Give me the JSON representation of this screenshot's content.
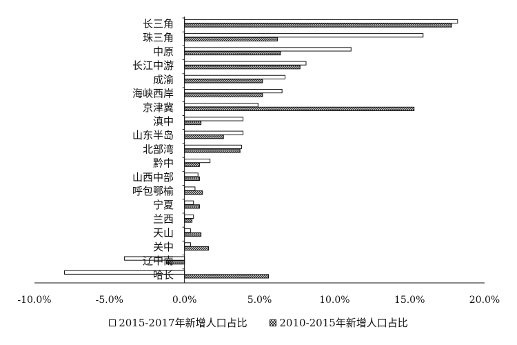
{
  "chart_data": {
    "type": "bar",
    "orientation": "horizontal",
    "categories": [
      "长三角",
      "珠三角",
      "中原",
      "长江中游",
      "成渝",
      "海峡西岸",
      "京津冀",
      "滇中",
      "山东半岛",
      "北部湾",
      "黔中",
      "山西中部",
      "呼包鄂榆",
      "宁夏",
      "兰西",
      "天山",
      "关中",
      "辽中南",
      "哈长"
    ],
    "series": [
      {
        "name": "2015-2017年新增人口占比",
        "pattern": "hollow",
        "values": [
          18.2,
          15.9,
          11.1,
          8.1,
          6.7,
          6.5,
          4.9,
          3.9,
          3.9,
          3.8,
          1.7,
          0.9,
          0.7,
          0.6,
          0.6,
          0.4,
          0.4,
          -4.0,
          -8.0
        ]
      },
      {
        "name": "2010-2015年新增人口占比",
        "pattern": "hatched",
        "values": [
          17.8,
          6.2,
          6.4,
          7.7,
          5.2,
          5.2,
          15.3,
          1.1,
          2.6,
          3.7,
          1.0,
          1.0,
          1.2,
          1.0,
          0.5,
          1.1,
          1.6,
          -1.2,
          5.6
        ]
      }
    ],
    "xlim": [
      -10,
      20
    ],
    "xticks": [
      -10,
      -5,
      0,
      5,
      10,
      15,
      20
    ],
    "xtick_labels": [
      "-10.0%",
      "-5.0%",
      "0.0%",
      "5.0%",
      "10.0%",
      "15.0%",
      "20.0%"
    ],
    "title": "",
    "xlabel": "",
    "ylabel": "",
    "grid": false,
    "legend_position": "bottom"
  },
  "colors": {
    "bar_fill": "#ffffff",
    "bar_stroke": "#111111",
    "hatch": "#333333",
    "axis": "#111111"
  }
}
